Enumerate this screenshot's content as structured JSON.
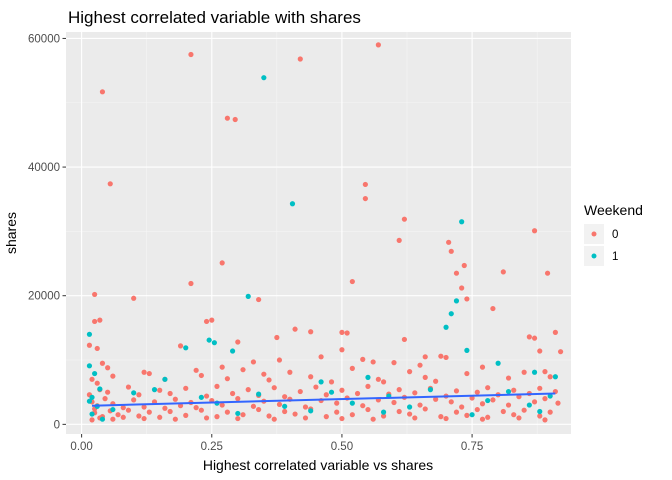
{
  "chart_data": {
    "type": "scatter",
    "title": "Highest correlated variable with shares",
    "xlabel": "Highest correlated variable vs shares",
    "ylabel": "shares",
    "xlim": [
      -0.03,
      0.94
    ],
    "ylim": [
      -1500,
      61000
    ],
    "x_ticks": [
      0,
      0.25,
      0.5,
      0.75
    ],
    "x_tick_labels": [
      "0.00",
      "0.25",
      "0.50",
      "0.75"
    ],
    "y_ticks": [
      0,
      20000,
      40000,
      60000
    ],
    "y_tick_labels": [
      "0",
      "20000",
      "40000",
      "60000"
    ],
    "grid": true,
    "legend": {
      "title": "Weekend",
      "placement": "right",
      "entries": [
        {
          "label": "0",
          "color": "#F8766D"
        },
        {
          "label": "1",
          "color": "#00BFC4"
        }
      ]
    },
    "trend_line": {
      "color": "#3366FF",
      "x": [
        0.02,
        0.91
      ],
      "y": [
        2900,
        4800
      ]
    },
    "series": [
      {
        "color": "#F8766D",
        "points": [
          [
            0.57,
            59000
          ],
          [
            0.21,
            57500
          ],
          [
            0.42,
            56800
          ],
          [
            0.04,
            51700
          ],
          [
            0.28,
            47600
          ],
          [
            0.295,
            47400
          ],
          [
            0.055,
            37400
          ],
          [
            0.545,
            37300
          ],
          [
            0.545,
            35100
          ],
          [
            0.62,
            31900
          ],
          [
            0.87,
            30100
          ],
          [
            0.705,
            28300
          ],
          [
            0.71,
            26900
          ],
          [
            0.61,
            28600
          ],
          [
            0.27,
            25100
          ],
          [
            0.735,
            24700
          ],
          [
            0.895,
            23500
          ],
          [
            0.81,
            23700
          ],
          [
            0.72,
            23500
          ],
          [
            0.52,
            22200
          ],
          [
            0.21,
            21900
          ],
          [
            0.025,
            20200
          ],
          [
            0.1,
            19600
          ],
          [
            0.34,
            19400
          ],
          [
            0.73,
            21200
          ],
          [
            0.74,
            19500
          ],
          [
            0.79,
            18000
          ],
          [
            0.035,
            16200
          ],
          [
            0.025,
            16000
          ],
          [
            0.24,
            16000
          ],
          [
            0.25,
            16200
          ],
          [
            0.41,
            14800
          ],
          [
            0.44,
            14400
          ],
          [
            0.5,
            14300
          ],
          [
            0.51,
            14200
          ],
          [
            0.86,
            13600
          ],
          [
            0.87,
            13400
          ],
          [
            0.91,
            14300
          ],
          [
            0.375,
            13500
          ],
          [
            0.62,
            13200
          ],
          [
            0.3,
            12800
          ],
          [
            0.19,
            12200
          ],
          [
            0.015,
            12300
          ],
          [
            0.03,
            11800
          ],
          [
            0.69,
            10600
          ],
          [
            0.7,
            10400
          ],
          [
            0.77,
            8900
          ],
          [
            0.56,
            9700
          ],
          [
            0.33,
            9700
          ],
          [
            0.38,
            10000
          ],
          [
            0.46,
            10500
          ],
          [
            0.5,
            11600
          ],
          [
            0.54,
            10100
          ],
          [
            0.6,
            9600
          ],
          [
            0.65,
            9200
          ],
          [
            0.66,
            10500
          ],
          [
            0.88,
            11400
          ],
          [
            0.89,
            8200
          ],
          [
            0.92,
            11300
          ],
          [
            0.04,
            9500
          ],
          [
            0.05,
            8800
          ],
          [
            0.06,
            7500
          ],
          [
            0.02,
            7000
          ],
          [
            0.12,
            8100
          ],
          [
            0.13,
            7900
          ],
          [
            0.16,
            7000
          ],
          [
            0.22,
            8400
          ],
          [
            0.23,
            7600
          ],
          [
            0.27,
            8900
          ],
          [
            0.28,
            7100
          ],
          [
            0.31,
            8500
          ],
          [
            0.35,
            7800
          ],
          [
            0.36,
            6900
          ],
          [
            0.4,
            8100
          ],
          [
            0.44,
            7400
          ],
          [
            0.48,
            6600
          ],
          [
            0.52,
            8700
          ],
          [
            0.57,
            7000
          ],
          [
            0.58,
            6600
          ],
          [
            0.63,
            8200
          ],
          [
            0.66,
            7300
          ],
          [
            0.68,
            6700
          ],
          [
            0.74,
            7900
          ],
          [
            0.82,
            7200
          ],
          [
            0.85,
            8100
          ],
          [
            0.9,
            7400
          ],
          [
            0.035,
            5400
          ],
          [
            0.05,
            5000
          ],
          [
            0.09,
            5800
          ],
          [
            0.11,
            4600
          ],
          [
            0.15,
            5300
          ],
          [
            0.17,
            4800
          ],
          [
            0.2,
            5600
          ],
          [
            0.24,
            4400
          ],
          [
            0.26,
            5900
          ],
          [
            0.29,
            4800
          ],
          [
            0.32,
            5400
          ],
          [
            0.34,
            4500
          ],
          [
            0.37,
            5700
          ],
          [
            0.39,
            4300
          ],
          [
            0.42,
            5100
          ],
          [
            0.45,
            5800
          ],
          [
            0.47,
            4600
          ],
          [
            0.5,
            5300
          ],
          [
            0.53,
            4800
          ],
          [
            0.55,
            5900
          ],
          [
            0.59,
            4700
          ],
          [
            0.61,
            5400
          ],
          [
            0.64,
            4900
          ],
          [
            0.67,
            5600
          ],
          [
            0.7,
            4400
          ],
          [
            0.72,
            5200
          ],
          [
            0.76,
            5000
          ],
          [
            0.78,
            5700
          ],
          [
            0.8,
            4600
          ],
          [
            0.83,
            5300
          ],
          [
            0.86,
            4800
          ],
          [
            0.88,
            5600
          ],
          [
            0.91,
            5100
          ],
          [
            0.02,
            3500
          ],
          [
            0.03,
            2900
          ],
          [
            0.045,
            4000
          ],
          [
            0.06,
            3200
          ],
          [
            0.08,
            2600
          ],
          [
            0.1,
            3800
          ],
          [
            0.12,
            2700
          ],
          [
            0.14,
            3500
          ],
          [
            0.16,
            2500
          ],
          [
            0.18,
            3900
          ],
          [
            0.19,
            2900
          ],
          [
            0.21,
            3400
          ],
          [
            0.22,
            2600
          ],
          [
            0.25,
            3700
          ],
          [
            0.27,
            3000
          ],
          [
            0.3,
            4000
          ],
          [
            0.33,
            2800
          ],
          [
            0.35,
            3600
          ],
          [
            0.38,
            3100
          ],
          [
            0.4,
            3900
          ],
          [
            0.43,
            2700
          ],
          [
            0.46,
            3700
          ],
          [
            0.49,
            3300
          ],
          [
            0.51,
            4100
          ],
          [
            0.54,
            2900
          ],
          [
            0.57,
            3800
          ],
          [
            0.6,
            3400
          ],
          [
            0.62,
            4200
          ],
          [
            0.65,
            3000
          ],
          [
            0.68,
            3900
          ],
          [
            0.71,
            3500
          ],
          [
            0.73,
            2700
          ],
          [
            0.75,
            4100
          ],
          [
            0.77,
            3200
          ],
          [
            0.79,
            3800
          ],
          [
            0.82,
            3000
          ],
          [
            0.84,
            4300
          ],
          [
            0.87,
            3500
          ],
          [
            0.89,
            4000
          ],
          [
            0.915,
            3300
          ],
          [
            0.025,
            1800
          ],
          [
            0.04,
            1200
          ],
          [
            0.055,
            2100
          ],
          [
            0.07,
            1500
          ],
          [
            0.09,
            2200
          ],
          [
            0.11,
            1300
          ],
          [
            0.13,
            1900
          ],
          [
            0.15,
            1100
          ],
          [
            0.17,
            2000
          ],
          [
            0.2,
            1400
          ],
          [
            0.23,
            2200
          ],
          [
            0.26,
            1200
          ],
          [
            0.28,
            1900
          ],
          [
            0.31,
            1500
          ],
          [
            0.34,
            2300
          ],
          [
            0.36,
            1300
          ],
          [
            0.39,
            2000
          ],
          [
            0.41,
            1600
          ],
          [
            0.44,
            2400
          ],
          [
            0.47,
            1200
          ],
          [
            0.49,
            1900
          ],
          [
            0.52,
            1500
          ],
          [
            0.55,
            2300
          ],
          [
            0.58,
            1300
          ],
          [
            0.61,
            2000
          ],
          [
            0.63,
            1600
          ],
          [
            0.66,
            2400
          ],
          [
            0.69,
            1200
          ],
          [
            0.72,
            1900
          ],
          [
            0.74,
            1400
          ],
          [
            0.76,
            2300
          ],
          [
            0.78,
            1100
          ],
          [
            0.81,
            2000
          ],
          [
            0.83,
            1500
          ],
          [
            0.85,
            2200
          ],
          [
            0.88,
            1300
          ],
          [
            0.9,
            1900
          ],
          [
            0.02,
            700
          ],
          [
            0.035,
            1000
          ],
          [
            0.06,
            800
          ],
          [
            0.08,
            1100
          ],
          [
            0.12,
            900
          ],
          [
            0.18,
            800
          ],
          [
            0.24,
            1000
          ],
          [
            0.3,
            900
          ],
          [
            0.37,
            800
          ],
          [
            0.43,
            1000
          ],
          [
            0.5,
            900
          ],
          [
            0.56,
            800
          ],
          [
            0.64,
            1000
          ],
          [
            0.7,
            900
          ],
          [
            0.77,
            800
          ],
          [
            0.84,
            1000
          ],
          [
            0.89,
            700
          ],
          [
            0.03,
            6400
          ],
          [
            0.015,
            4600
          ],
          [
            0.025,
            2400
          ]
        ]
      },
      {
        "color": "#00BFC4",
        "points": [
          [
            0.35,
            53900
          ],
          [
            0.405,
            34300
          ],
          [
            0.73,
            31500
          ],
          [
            0.32,
            19900
          ],
          [
            0.72,
            19200
          ],
          [
            0.71,
            17200
          ],
          [
            0.7,
            15100
          ],
          [
            0.015,
            14000
          ],
          [
            0.245,
            13100
          ],
          [
            0.255,
            12700
          ],
          [
            0.2,
            11900
          ],
          [
            0.29,
            11400
          ],
          [
            0.74,
            11500
          ],
          [
            0.015,
            9100
          ],
          [
            0.025,
            7900
          ],
          [
            0.16,
            7000
          ],
          [
            0.87,
            8100
          ],
          [
            0.91,
            7400
          ],
          [
            0.8,
            9500
          ],
          [
            0.55,
            7300
          ],
          [
            0.46,
            6600
          ],
          [
            0.1,
            4900
          ],
          [
            0.035,
            5500
          ],
          [
            0.02,
            4200
          ],
          [
            0.015,
            3600
          ],
          [
            0.03,
            2800
          ],
          [
            0.14,
            5400
          ],
          [
            0.23,
            4200
          ],
          [
            0.26,
            3300
          ],
          [
            0.34,
            4700
          ],
          [
            0.39,
            2800
          ],
          [
            0.48,
            5000
          ],
          [
            0.52,
            3300
          ],
          [
            0.59,
            4400
          ],
          [
            0.63,
            2700
          ],
          [
            0.67,
            5400
          ],
          [
            0.78,
            3700
          ],
          [
            0.82,
            5100
          ],
          [
            0.86,
            3000
          ],
          [
            0.9,
            4400
          ],
          [
            0.02,
            1600
          ],
          [
            0.06,
            2300
          ],
          [
            0.3,
            1700
          ],
          [
            0.44,
            2100
          ],
          [
            0.58,
            1900
          ],
          [
            0.75,
            1500
          ],
          [
            0.88,
            2000
          ],
          [
            0.04,
            800
          ]
        ]
      }
    ]
  }
}
